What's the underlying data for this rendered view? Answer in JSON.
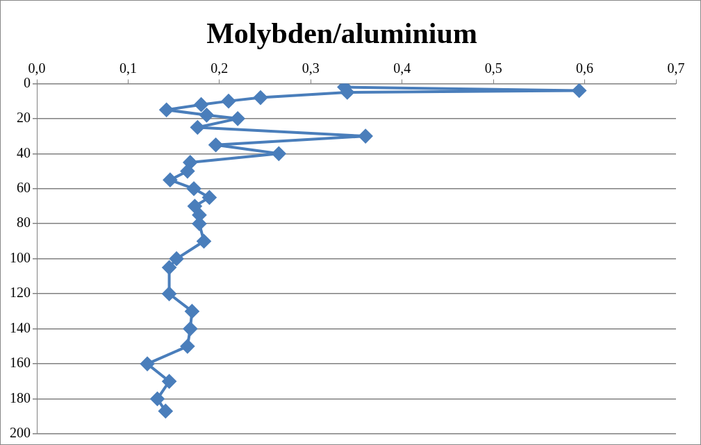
{
  "chart_data": {
    "type": "line",
    "title": "Molybden/aluminium",
    "marker": "diamond",
    "grid": "y",
    "xlim": [
      0,
      0.7
    ],
    "xticks": [
      {
        "value": 0,
        "label": "0,0"
      },
      {
        "value": 0.1,
        "label": "0,1"
      },
      {
        "value": 0.2,
        "label": "0,2"
      },
      {
        "value": 0.3,
        "label": "0,3"
      },
      {
        "value": 0.4,
        "label": "0,4"
      },
      {
        "value": 0.5,
        "label": "0,5"
      },
      {
        "value": 0.6,
        "label": "0,6"
      },
      {
        "value": 0.7,
        "label": "0,7"
      }
    ],
    "ylim": [
      200,
      0
    ],
    "yticks": [
      0,
      20,
      40,
      60,
      80,
      100,
      120,
      140,
      160,
      180,
      200
    ],
    "series": [
      {
        "color": "#4a7ebb",
        "x": [
          0.337,
          0.594,
          0.34,
          0.245,
          0.21,
          0.18,
          0.142,
          0.186,
          0.22,
          0.176,
          0.36,
          0.196,
          0.265,
          0.168,
          0.165,
          0.146,
          0.172,
          0.189,
          0.173,
          0.178,
          0.178,
          0.183,
          0.153,
          0.145,
          0.145,
          0.17,
          0.168,
          0.165,
          0.121,
          0.145,
          0.132,
          0.141
        ],
        "values": [
          2,
          4,
          5,
          8,
          10,
          12,
          15,
          18,
          20,
          25,
          30,
          35,
          40,
          45,
          50,
          55,
          60,
          65,
          70,
          75,
          80,
          90,
          100,
          105,
          120,
          130,
          140,
          150,
          160,
          170,
          180,
          187
        ]
      }
    ]
  }
}
